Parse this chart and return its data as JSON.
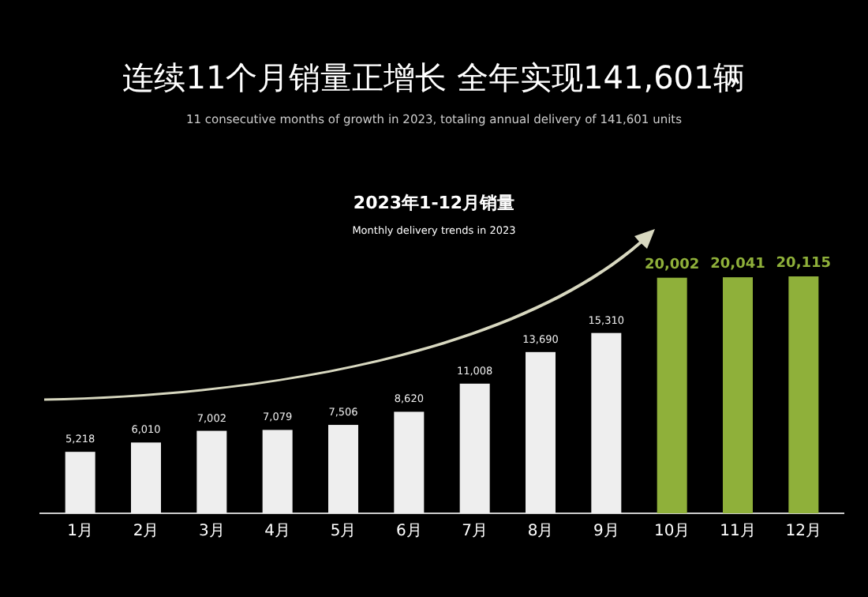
{
  "chart_data": {
    "type": "bar",
    "title": "连续11个月销量正增长 全年实现141,601辆",
    "subtitle": "11 consecutive months of growth in 2023, totaling annual delivery of 141,601 units",
    "annotations": [
      "2023年1-12月销量",
      "Monthly delivery trends in 2023"
    ],
    "categories": [
      "1月",
      "2月",
      "3月",
      "4月",
      "5月",
      "6月",
      "7月",
      "8月",
      "9月",
      "10月",
      "11月",
      "12月"
    ],
    "values": [
      5218,
      6010,
      7002,
      7079,
      7506,
      8620,
      11008,
      13690,
      15310,
      20002,
      20041,
      20115
    ],
    "value_labels": [
      "5,218",
      "6,010",
      "7,002",
      "7,079",
      "7,506",
      "8,620",
      "11,008",
      "13,690",
      "15,310",
      "20,002",
      "20,041",
      "20,115"
    ],
    "colors": [
      "#eeeeee",
      "#eeeeee",
      "#eeeeee",
      "#eeeeee",
      "#eeeeee",
      "#eeeeee",
      "#eeeeee",
      "#eeeeee",
      "#eeeeee",
      "#8fb03a",
      "#8fb03a",
      "#8fb03a"
    ]
  }
}
